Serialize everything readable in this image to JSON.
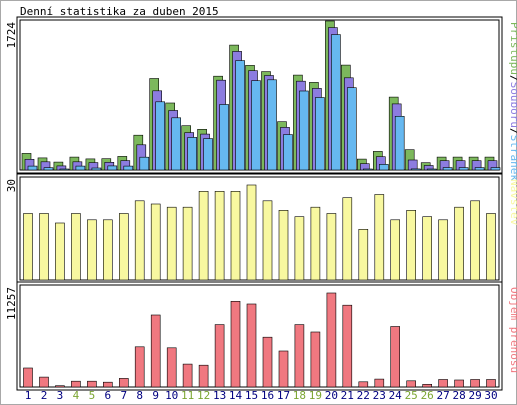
{
  "title": "Denní statistika za duben 2015",
  "colors": {
    "hits": "#7cb85c",
    "files": "#8c7ce0",
    "pages": "#66b8f0",
    "visits": "#f8f8a0",
    "kbytes": "#f07880",
    "weekend_label": "#7ca632",
    "weekday_label": "#000080"
  },
  "chart_data": [
    {
      "type": "bar",
      "name": "requests",
      "ymax_label": "1724",
      "ylim": [
        0,
        1724
      ],
      "legend": [
        {
          "key": "hits",
          "text": "Přístupů"
        },
        {
          "key": "sep1",
          "text": "/"
        },
        {
          "key": "files",
          "text": "Souborů"
        },
        {
          "key": "sep2",
          "text": "/"
        },
        {
          "key": "pages",
          "text": "Stránek"
        }
      ],
      "categories": [
        "1",
        "2",
        "3",
        "4",
        "5",
        "6",
        "7",
        "8",
        "9",
        "10",
        "11",
        "12",
        "13",
        "14",
        "15",
        "16",
        "17",
        "18",
        "19",
        "20",
        "21",
        "22",
        "23",
        "24",
        "25",
        "26",
        "27",
        "28",
        "29",
        "30"
      ],
      "weekend": [
        4,
        5,
        11,
        12,
        18,
        19,
        25,
        26
      ],
      "series": [
        {
          "name": "Přístupů",
          "key": "hits",
          "values": [
            161,
            108,
            58,
            117,
            96,
            98,
            125,
            376,
            1045,
            756,
            488,
            445,
            1072,
            1440,
            1200,
            1126,
            535,
            1085,
            999,
            1724,
            1203,
            93,
            184,
            825,
            204,
            51,
            117,
            117,
            117,
            117
          ]
        },
        {
          "name": "Souborů",
          "key": "files",
          "values": [
            126,
            97,
            48,
            97,
            87,
            91,
            111,
            297,
            935,
            703,
            442,
            424,
            1060,
            1400,
            1173,
            1116,
            503,
            1049,
            964,
            1682,
            1089,
            74,
            157,
            781,
            118,
            53,
            110,
            110,
            110,
            110
          ]
        },
        {
          "name": "Stránek",
          "key": "pages",
          "values": [
            82,
            63,
            30,
            82,
            59,
            84,
            82,
            187,
            841,
            652,
            420,
            406,
            809,
            1327,
            1090,
            1100,
            453,
            968,
            891,
            1634,
            1007,
            42,
            102,
            669,
            48,
            38,
            64,
            64,
            64,
            64
          ]
        }
      ]
    },
    {
      "type": "bar",
      "name": "visits",
      "ymax_label": "30",
      "ylim": [
        0,
        30
      ],
      "legend": [
        {
          "key": "visits",
          "text": "Návštěv"
        }
      ],
      "series": [
        {
          "name": "Návštěv",
          "key": "visits",
          "values": [
            21,
            21,
            18,
            21,
            19,
            19,
            21,
            25,
            24,
            23,
            23,
            28,
            28,
            28,
            30,
            25,
            22,
            20,
            23,
            21,
            26,
            16,
            27,
            19,
            22,
            20,
            19,
            23,
            25,
            21
          ]
        }
      ]
    },
    {
      "type": "bar",
      "name": "kbytes",
      "ymax_label": "11257",
      "ylim": [
        0,
        11257
      ],
      "legend": [
        {
          "key": "kbytes",
          "text": "Objem přenosu"
        }
      ],
      "series": [
        {
          "name": "Objem přenosu",
          "key": "kbytes",
          "values": [
            2280,
            1180,
            150,
            700,
            700,
            570,
            1030,
            4810,
            8620,
            4700,
            2740,
            2610,
            7470,
            10260,
            9940,
            5960,
            4310,
            7470,
            6590,
            11257,
            9790,
            620,
            950,
            7240,
            740,
            320,
            900,
            840,
            900,
            900
          ]
        }
      ]
    }
  ]
}
